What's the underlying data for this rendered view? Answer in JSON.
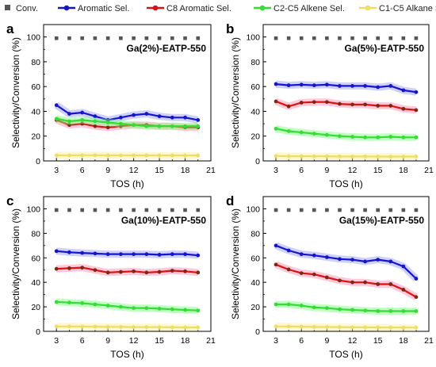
{
  "legend": {
    "items": [
      {
        "label": "Conv.",
        "color": "#555555",
        "marker": "square"
      },
      {
        "label": "Aromatic Sel.",
        "color": "#1515cc",
        "marker": "circle"
      },
      {
        "label": "C8 Aromatic Sel.",
        "color": "#dd1111",
        "marker": "circle"
      },
      {
        "label": "C2-C5 Alkene Sel.",
        "color": "#33dd33",
        "marker": "circle"
      },
      {
        "label": "C1-C5 Alkane Sel.",
        "color": "#eedd66",
        "marker": "circle"
      }
    ]
  },
  "chart_data": [
    {
      "type": "line",
      "panel_letter": "a",
      "title": "Ga(2%)-EATP-550",
      "xlabel": "TOS (h)",
      "ylabel": "Selectivity/Conversion (%)",
      "xlim": [
        1.5,
        21
      ],
      "ylim": [
        0,
        110
      ],
      "xticks": [
        3,
        6,
        9,
        12,
        15,
        18,
        21
      ],
      "yticks": [
        0,
        20,
        40,
        60,
        80,
        100
      ],
      "x": [
        3,
        4.5,
        6,
        7.5,
        9,
        10.5,
        12,
        13.5,
        15,
        16.5,
        18,
        19.5
      ],
      "series": [
        {
          "name": "Conv.",
          "values": [
            99,
            99,
            99,
            99,
            99,
            99,
            99,
            99,
            99,
            99,
            99,
            99
          ]
        },
        {
          "name": "Aromatic Sel.",
          "values": [
            45,
            38,
            39,
            36,
            33,
            35,
            37,
            38,
            36,
            35,
            35,
            33
          ]
        },
        {
          "name": "C8 Aromatic Sel.",
          "values": [
            33,
            29,
            30,
            28,
            27,
            28,
            29,
            29,
            28,
            28,
            27,
            27
          ]
        },
        {
          "name": "C2-C5 Alkene Sel.",
          "values": [
            34,
            32,
            33,
            32,
            31,
            30,
            29,
            28,
            28,
            28,
            28,
            28
          ]
        },
        {
          "name": "C1-C5 Alkane Sel.",
          "values": [
            4.5,
            4.5,
            4.6,
            4.6,
            4.5,
            4.5,
            4.5,
            4.4,
            4.4,
            4.4,
            4.4,
            4.4
          ]
        }
      ]
    },
    {
      "type": "line",
      "panel_letter": "b",
      "title": "Ga(5%)-EATP-550",
      "xlabel": "TOS (h)",
      "ylabel": "Selectivity/Conversion (%)",
      "xlim": [
        1.5,
        21
      ],
      "ylim": [
        0,
        110
      ],
      "xticks": [
        3,
        6,
        9,
        12,
        15,
        18,
        21
      ],
      "yticks": [
        0,
        20,
        40,
        60,
        80,
        100
      ],
      "x": [
        3,
        4.5,
        6,
        7.5,
        9,
        10.5,
        12,
        13.5,
        15,
        16.5,
        18,
        19.5
      ],
      "series": [
        {
          "name": "Conv.",
          "values": [
            99,
            99,
            99,
            99,
            99,
            99,
            99,
            99,
            99,
            99,
            99,
            99
          ]
        },
        {
          "name": "Aromatic Sel.",
          "values": [
            62,
            61,
            61.5,
            61,
            61.5,
            60.5,
            60.5,
            60.5,
            59.5,
            60.5,
            57,
            55.5
          ]
        },
        {
          "name": "C8 Aromatic Sel.",
          "values": [
            48,
            44,
            47,
            47.5,
            47.5,
            46,
            45.5,
            45.5,
            44.5,
            44.5,
            42,
            41
          ]
        },
        {
          "name": "C2-C5 Alkene Sel.",
          "values": [
            26,
            24,
            23,
            22,
            21,
            20,
            19.5,
            19,
            19,
            19.5,
            19,
            19
          ]
        },
        {
          "name": "C1-C5 Alkane Sel.",
          "values": [
            4,
            3.8,
            3.8,
            3.7,
            3.7,
            3.6,
            3.6,
            3.6,
            3.5,
            3.5,
            3.5,
            3.5
          ]
        }
      ]
    },
    {
      "type": "line",
      "panel_letter": "c",
      "title": "Ga(10%)-EATP-550",
      "xlabel": "TOS (h)",
      "ylabel": "Selectivity/Conversion (%)",
      "xlim": [
        1.5,
        21
      ],
      "ylim": [
        0,
        110
      ],
      "xticks": [
        3,
        6,
        9,
        12,
        15,
        18,
        21
      ],
      "yticks": [
        0,
        20,
        40,
        60,
        80,
        100
      ],
      "x": [
        3,
        4.5,
        6,
        7.5,
        9,
        10.5,
        12,
        13.5,
        15,
        16.5,
        18,
        19.5
      ],
      "series": [
        {
          "name": "Conv.",
          "values": [
            99,
            99,
            99,
            99,
            99,
            99,
            99,
            99,
            99,
            99,
            99,
            99
          ]
        },
        {
          "name": "Aromatic Sel.",
          "values": [
            65.5,
            64.5,
            64,
            63.5,
            63,
            63,
            63,
            63,
            62.5,
            63,
            63,
            62
          ]
        },
        {
          "name": "C8 Aromatic Sel.",
          "values": [
            51,
            51.5,
            52,
            50,
            48,
            48.5,
            49,
            48,
            48.5,
            49.5,
            49,
            48
          ]
        },
        {
          "name": "C2-C5 Alkene Sel.",
          "values": [
            24,
            23.5,
            23,
            22,
            21,
            20,
            19,
            19,
            18.5,
            18,
            17.5,
            17
          ]
        },
        {
          "name": "C1-C5 Alkane Sel.",
          "values": [
            4,
            4,
            3.9,
            3.8,
            3.6,
            3.6,
            3.5,
            3.5,
            3.4,
            3.3,
            3.2,
            3.2
          ]
        }
      ]
    },
    {
      "type": "line",
      "panel_letter": "d",
      "title": "Ga(15%)-EATP-550",
      "xlabel": "TOS (h)",
      "ylabel": "Selectivity/Conversion (%)",
      "xlim": [
        1.5,
        21
      ],
      "ylim": [
        0,
        110
      ],
      "xticks": [
        3,
        6,
        9,
        12,
        15,
        18,
        21
      ],
      "yticks": [
        0,
        20,
        40,
        60,
        80,
        100
      ],
      "x": [
        3,
        4.5,
        6,
        7.5,
        9,
        10.5,
        12,
        13.5,
        15,
        16.5,
        18,
        19.5
      ],
      "series": [
        {
          "name": "Conv.",
          "values": [
            99,
            99,
            99,
            99,
            99,
            99,
            99,
            99,
            99,
            99,
            99,
            99
          ]
        },
        {
          "name": "Aromatic Sel.",
          "values": [
            70,
            66,
            63,
            62,
            60.5,
            59,
            58.5,
            57,
            58.5,
            57,
            53,
            43
          ]
        },
        {
          "name": "C8 Aromatic Sel.",
          "values": [
            54.5,
            50.5,
            47.5,
            46.5,
            44,
            41.5,
            40,
            40,
            38.5,
            38.5,
            34,
            28
          ]
        },
        {
          "name": "C2-C5 Alkene Sel.",
          "values": [
            22,
            22,
            21,
            19.5,
            19,
            18,
            17.5,
            17,
            16.5,
            16.5,
            16.5,
            16.5
          ]
        },
        {
          "name": "C1-C5 Alkane Sel.",
          "values": [
            4,
            4,
            3.8,
            3.6,
            3.5,
            3.5,
            3.3,
            3.3,
            3.2,
            3.2,
            3.1,
            3.1
          ]
        }
      ]
    }
  ]
}
